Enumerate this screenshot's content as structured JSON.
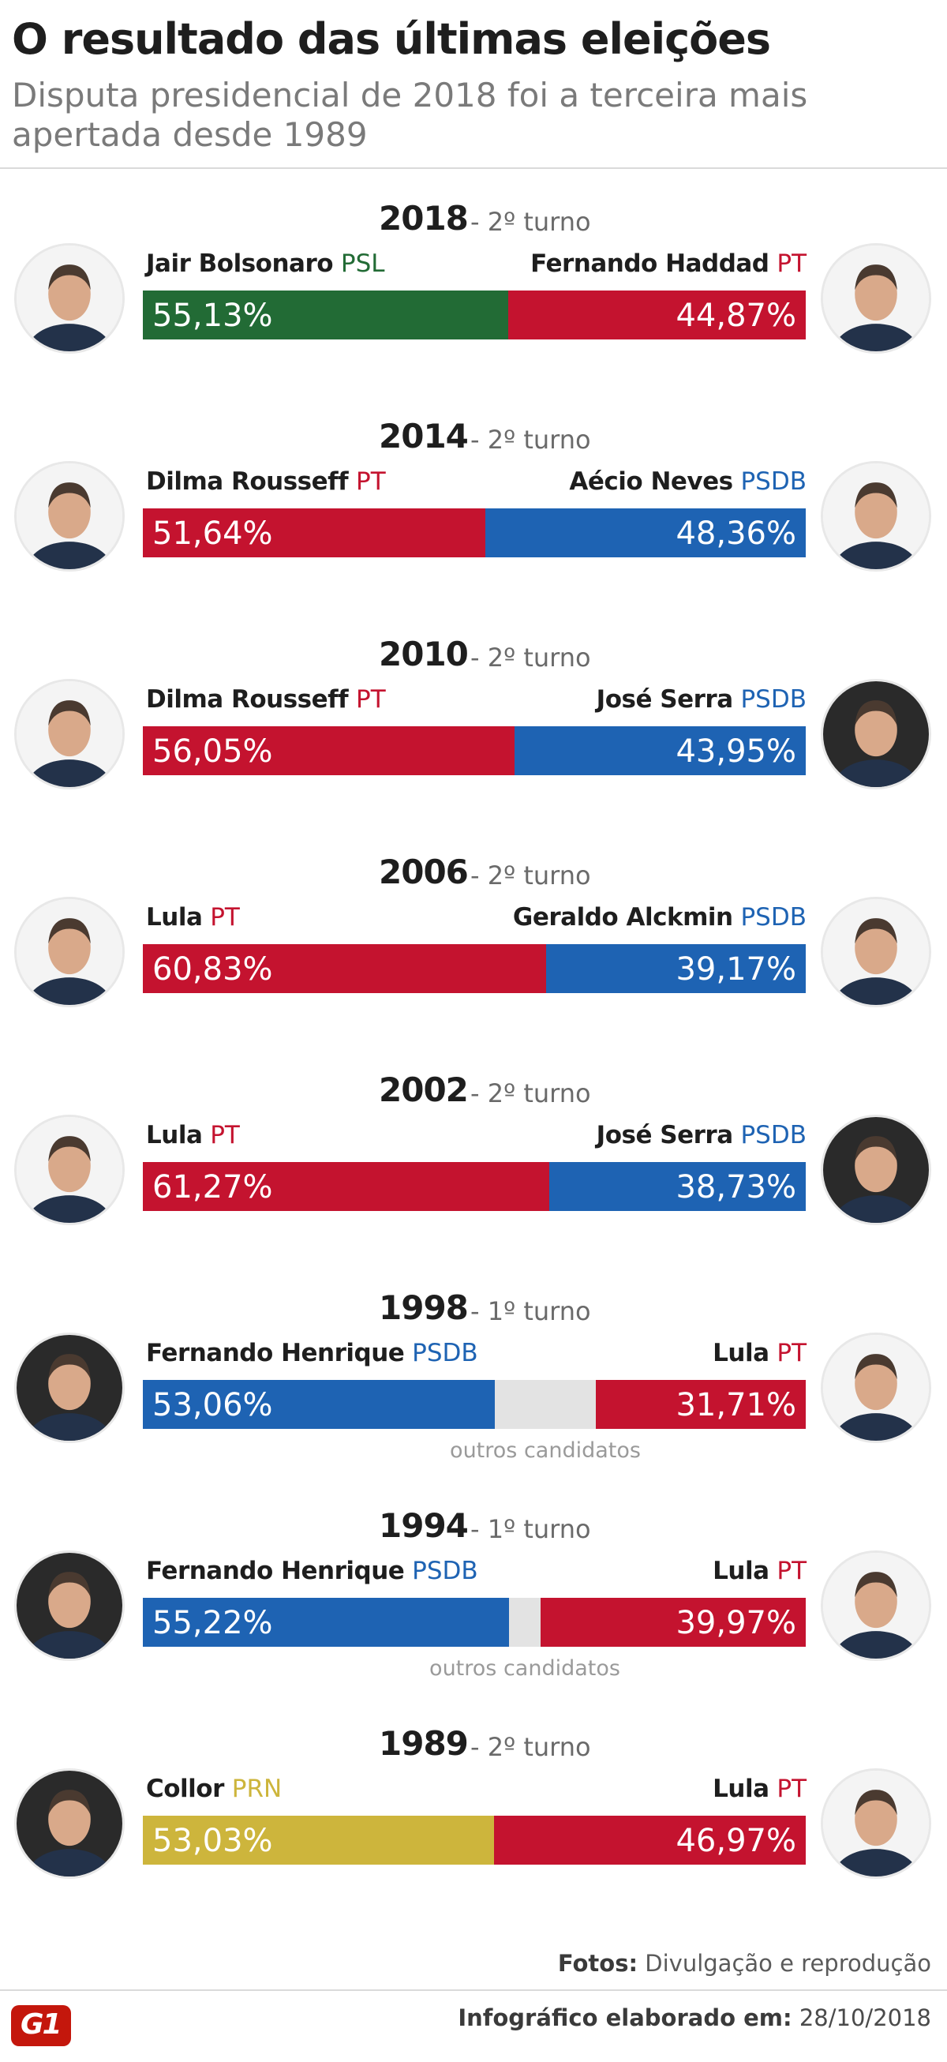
{
  "title": "O resultado das últimas eleições",
  "subtitle": "Disputa presidencial de 2018 foi a terceira mais apertada desde 1989",
  "credits": {
    "label": "Fotos:",
    "text": "Divulgação e reprodução"
  },
  "footer": {
    "label": "Infográfico elaborado em:",
    "date": "28/10/2018",
    "logo": "G1"
  },
  "colors": {
    "PSL": "#226b35",
    "PT": "#c4132f",
    "PSDB": "#1e63b3",
    "PRN": "#cdb53c",
    "other": "#e3e3e3"
  },
  "chart_data": {
    "type": "bar",
    "orientation": "horizontal-stacked",
    "elections": [
      {
        "year": "2018",
        "round": "- 2º turno",
        "left": {
          "name": "Jair Bolsonaro",
          "party": "PSL",
          "pct": 55.13,
          "label": "55,13%"
        },
        "right": {
          "name": "Fernando Haddad",
          "party": "PT",
          "pct": 44.87,
          "label": "44,87%"
        },
        "other": null
      },
      {
        "year": "2014",
        "round": "- 2º turno",
        "left": {
          "name": "Dilma Rousseff",
          "party": "PT",
          "pct": 51.64,
          "label": "51,64%"
        },
        "right": {
          "name": "Aécio Neves",
          "party": "PSDB",
          "pct": 48.36,
          "label": "48,36%"
        },
        "other": null
      },
      {
        "year": "2010",
        "round": "- 2º turno",
        "left": {
          "name": "Dilma Rousseff",
          "party": "PT",
          "pct": 56.05,
          "label": "56,05%"
        },
        "right": {
          "name": "José Serra",
          "party": "PSDB",
          "pct": 43.95,
          "label": "43,95%"
        },
        "other": null
      },
      {
        "year": "2006",
        "round": "- 2º turno",
        "left": {
          "name": "Lula",
          "party": "PT",
          "pct": 60.83,
          "label": "60,83%"
        },
        "right": {
          "name": "Geraldo Alckmin",
          "party": "PSDB",
          "pct": 39.17,
          "label": "39,17%"
        },
        "other": null
      },
      {
        "year": "2002",
        "round": "- 2º turno",
        "left": {
          "name": "Lula",
          "party": "PT",
          "pct": 61.27,
          "label": "61,27%"
        },
        "right": {
          "name": "José Serra",
          "party": "PSDB",
          "pct": 38.73,
          "label": "38,73%"
        },
        "other": null
      },
      {
        "year": "1998",
        "round": "- 1º turno",
        "left": {
          "name": "Fernando Henrique",
          "party": "PSDB",
          "pct": 53.06,
          "label": "53,06%"
        },
        "right": {
          "name": "Lula",
          "party": "PT",
          "pct": 31.71,
          "label": "31,71%"
        },
        "other": {
          "label": "outros candidatos",
          "pct": 15.23
        }
      },
      {
        "year": "1994",
        "round": "- 1º turno",
        "left": {
          "name": "Fernando Henrique",
          "party": "PSDB",
          "pct": 55.22,
          "label": "55,22%"
        },
        "right": {
          "name": "Lula",
          "party": "PT",
          "pct": 39.97,
          "label": "39,97%"
        },
        "other": {
          "label": "outros candidatos",
          "pct": 4.81
        }
      },
      {
        "year": "1989",
        "round": "- 2º turno",
        "left": {
          "name": "Collor",
          "party": "PRN",
          "pct": 53.03,
          "label": "53,03%"
        },
        "right": {
          "name": "Lula",
          "party": "PT",
          "pct": 46.97,
          "label": "46,97%"
        },
        "other": null
      }
    ]
  }
}
